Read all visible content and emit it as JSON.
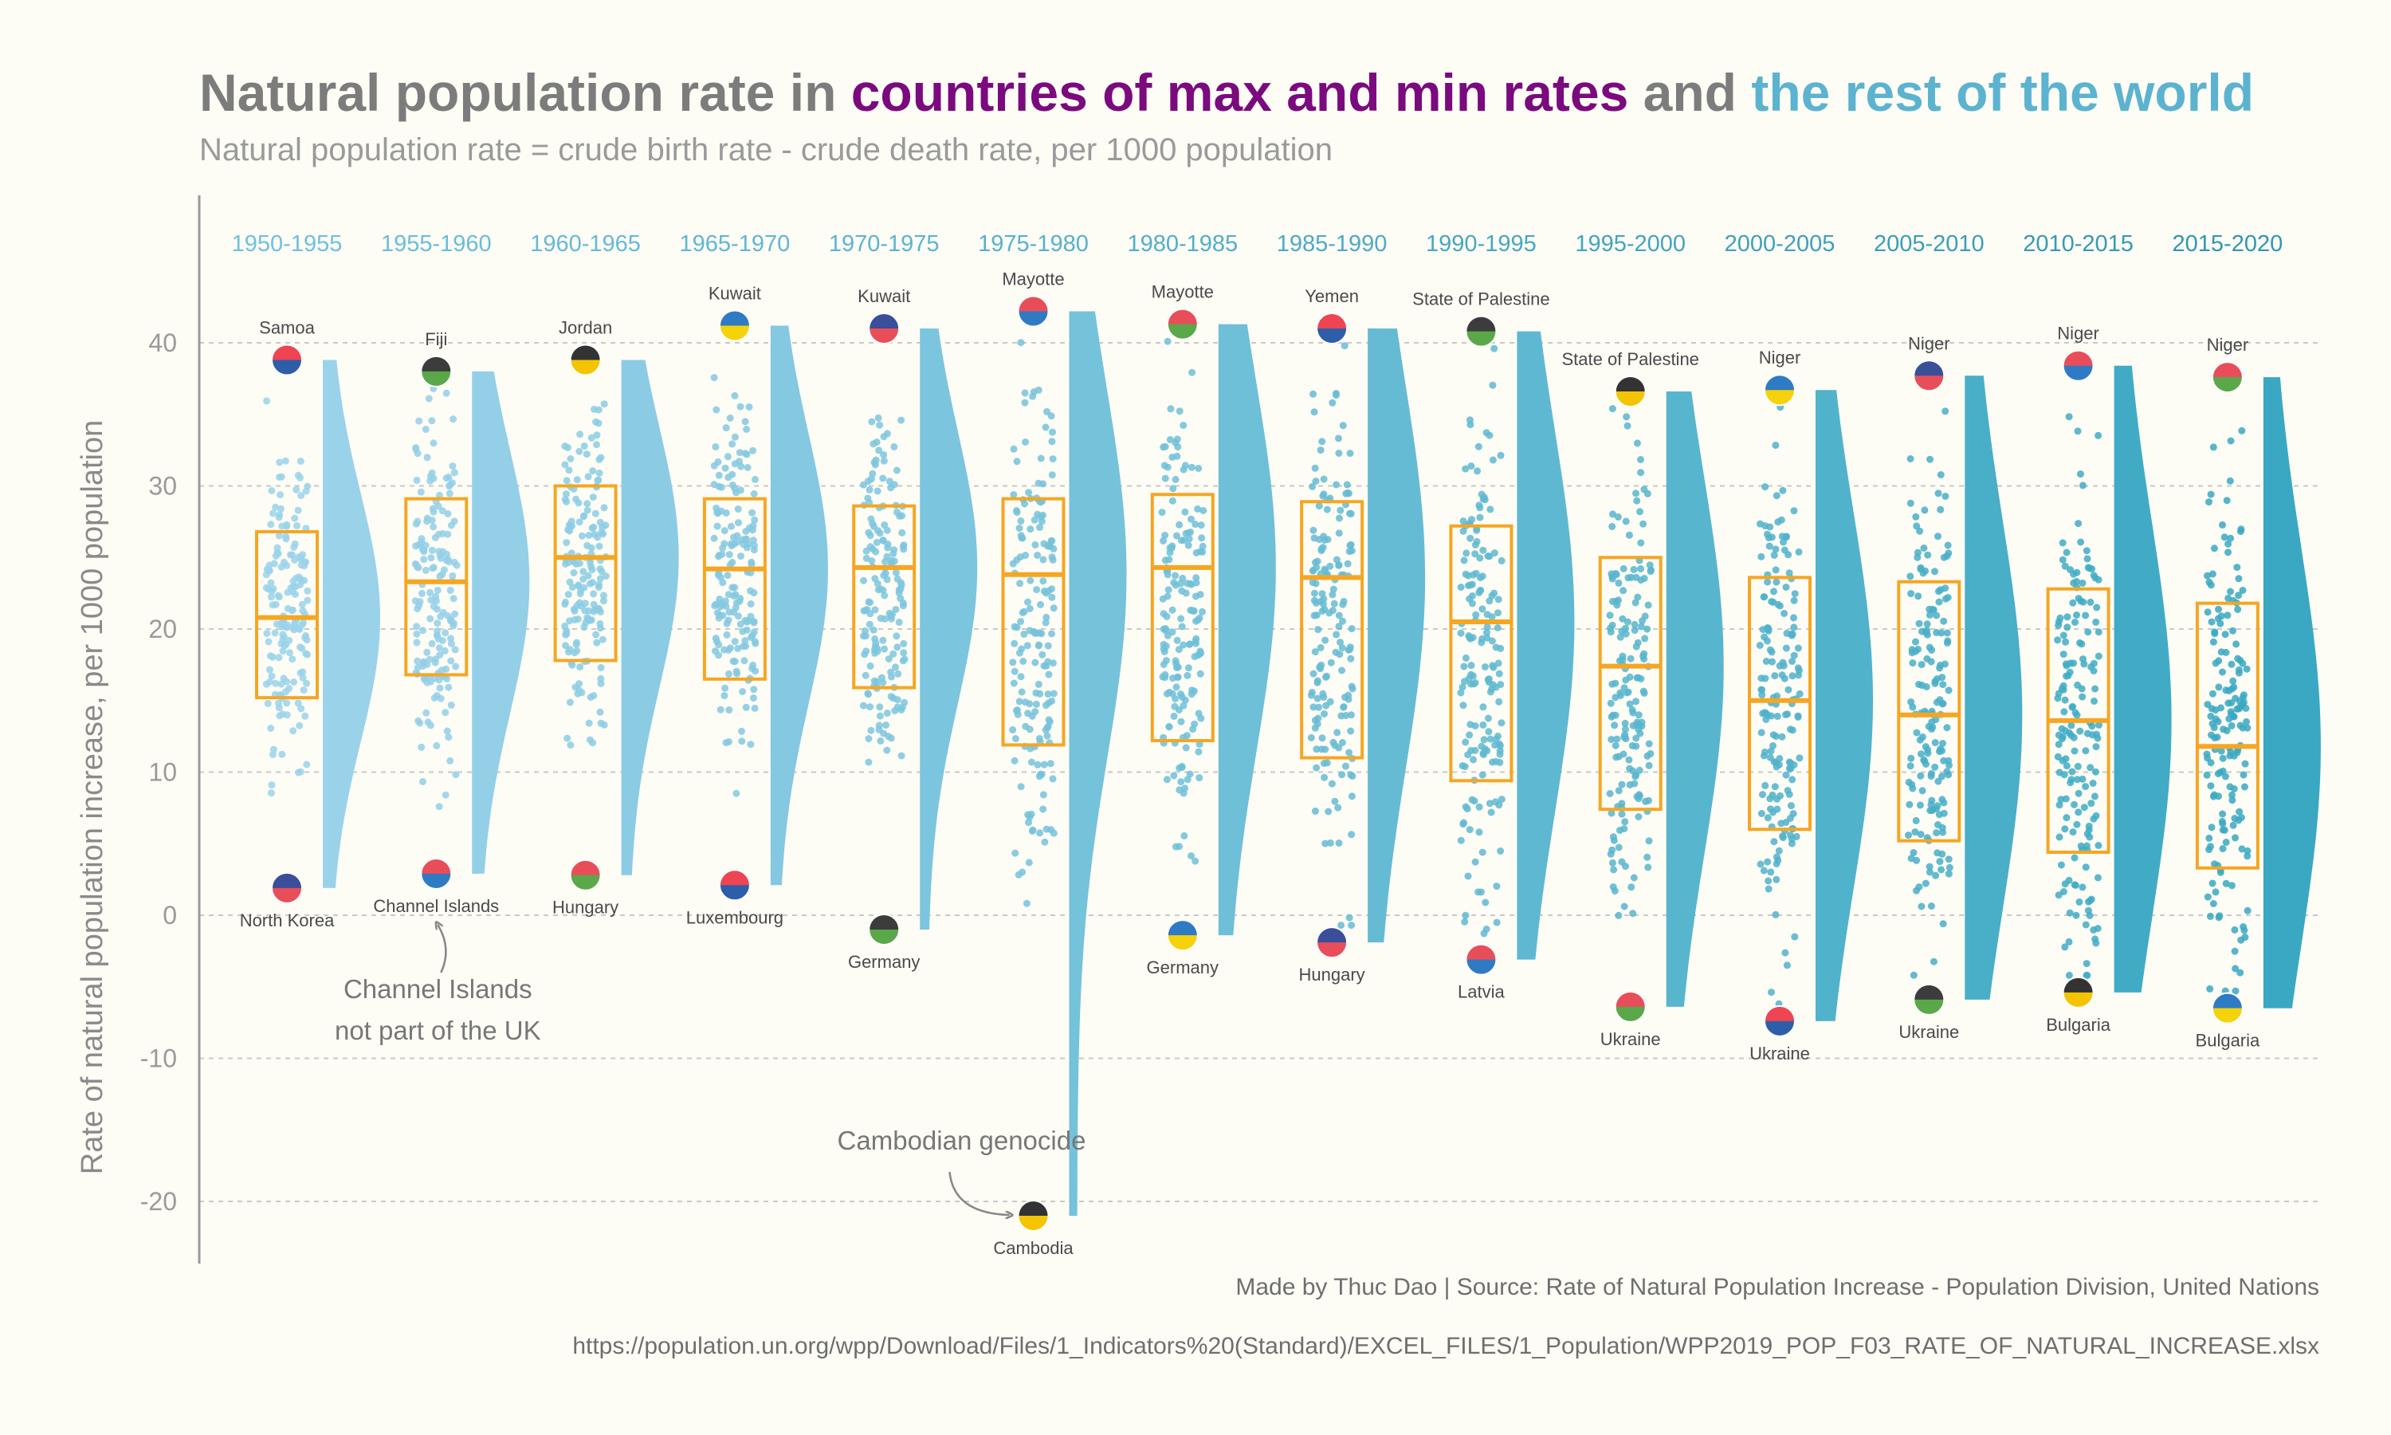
{
  "title": {
    "part1": "Natural population rate in ",
    "part2": "countries of max and min rates",
    "part3": " and ",
    "part4": "the rest of the world"
  },
  "subtitle": "Natural population rate = crude birth rate - crude death rate, per 1000 population",
  "caption_source": "Made by Thuc Dao | Source: Rate of Natural Population Increase - Population Division, United Nations",
  "caption_url": "https://population.un.org/wpp/Download/Files/1_Indicators%20(Standard)/EXCEL_FILES/1_Population/WPP2019_POP_F03_RATE_OF_NATURAL_INCREASE.xlsx",
  "annotations": [
    {
      "lines": [
        "Channel Islands",
        "not part of the UK"
      ],
      "period": 1
    },
    {
      "lines": [
        "Cambodian genocide"
      ],
      "period": 5
    }
  ],
  "chart_data": {
    "type": "raincloud",
    "ylabel": "Rate of natural population increase, per 1000 population",
    "yticks": [
      -20,
      -10,
      0,
      10,
      20,
      30,
      40
    ],
    "ylim": [
      -24,
      50
    ],
    "grid": true,
    "colors": {
      "box": "#f5a623",
      "max_min_highlight": "#7a0a7e",
      "rest_of_world": "#5bb3d0"
    },
    "periods": [
      {
        "period": "1950-1955",
        "q1": 15.2,
        "median": 20.8,
        "q3": 26.8,
        "max": {
          "country": "Samoa",
          "value": 38.8
        },
        "min": {
          "country": "North Korea",
          "value": 1.9
        }
      },
      {
        "period": "1955-1960",
        "q1": 16.8,
        "median": 23.3,
        "q3": 29.1,
        "max": {
          "country": "Fiji",
          "value": 38.0
        },
        "min": {
          "country": "Channel Islands",
          "value": 2.9
        }
      },
      {
        "period": "1960-1965",
        "q1": 17.8,
        "median": 25.0,
        "q3": 30.0,
        "max": {
          "country": "Jordan",
          "value": 38.8
        },
        "min": {
          "country": "Hungary",
          "value": 2.8
        }
      },
      {
        "period": "1965-1970",
        "q1": 16.5,
        "median": 24.2,
        "q3": 29.1,
        "max": {
          "country": "Kuwait",
          "value": 41.2
        },
        "min": {
          "country": "Luxembourg",
          "value": 2.1
        }
      },
      {
        "period": "1970-1975",
        "q1": 15.9,
        "median": 24.3,
        "q3": 28.6,
        "max": {
          "country": "Kuwait",
          "value": 41.0
        },
        "min": {
          "country": "Germany",
          "value": -1.0
        }
      },
      {
        "period": "1975-1980",
        "q1": 11.9,
        "median": 23.8,
        "q3": 29.1,
        "max": {
          "country": "Mayotte",
          "value": 42.2
        },
        "min": {
          "country": "Cambodia",
          "value": -21.0
        }
      },
      {
        "period": "1980-1985",
        "q1": 12.2,
        "median": 24.3,
        "q3": 29.4,
        "max": {
          "country": "Mayotte",
          "value": 41.3
        },
        "min": {
          "country": "Germany",
          "value": -1.4
        }
      },
      {
        "period": "1985-1990",
        "q1": 11.0,
        "median": 23.6,
        "q3": 28.9,
        "max": {
          "country": "Yemen",
          "value": 41.0
        },
        "min": {
          "country": "Hungary",
          "value": -1.9
        }
      },
      {
        "period": "1990-1995",
        "q1": 9.4,
        "median": 20.5,
        "q3": 27.2,
        "max": {
          "country": "State of Palestine",
          "value": 40.8
        },
        "min": {
          "country": "Latvia",
          "value": -3.1
        }
      },
      {
        "period": "1995-2000",
        "q1": 7.4,
        "median": 17.4,
        "q3": 25.0,
        "max": {
          "country": "State of Palestine",
          "value": 36.6
        },
        "min": {
          "country": "Ukraine",
          "value": -6.4
        }
      },
      {
        "period": "2000-2005",
        "q1": 6.0,
        "median": 15.0,
        "q3": 23.6,
        "max": {
          "country": "Niger",
          "value": 36.7
        },
        "min": {
          "country": "Ukraine",
          "value": -7.4
        }
      },
      {
        "period": "2005-2010",
        "q1": 5.2,
        "median": 14.0,
        "q3": 23.3,
        "max": {
          "country": "Niger",
          "value": 37.7
        },
        "min": {
          "country": "Ukraine",
          "value": -5.9
        }
      },
      {
        "period": "2010-2015",
        "q1": 4.4,
        "median": 13.6,
        "q3": 22.8,
        "max": {
          "country": "Niger",
          "value": 38.4
        },
        "min": {
          "country": "Bulgaria",
          "value": -5.4
        }
      },
      {
        "period": "2015-2020",
        "q1": 3.3,
        "median": 11.8,
        "q3": 21.8,
        "max": {
          "country": "Niger",
          "value": 37.6
        },
        "min": {
          "country": "Bulgaria",
          "value": -6.5
        }
      }
    ]
  }
}
